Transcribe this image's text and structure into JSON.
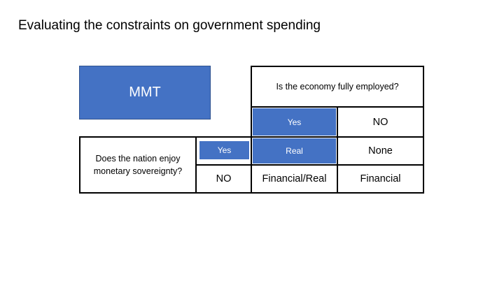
{
  "slide": {
    "title": "Evaluating the constraints on government spending"
  },
  "mmt_box": {
    "label": "MMT"
  },
  "matrix": {
    "column_question": "Is the economy fully employed?",
    "row_question": "Does the nation enjoy monetary sovereignty?",
    "column_headers": [
      "Yes",
      "NO"
    ],
    "row_headers": [
      "Yes",
      "NO"
    ],
    "cells": [
      [
        "Real",
        "None"
      ],
      [
        "Financial/Real",
        "Financial"
      ]
    ]
  },
  "colors": {
    "accent": "#4472c4",
    "border": "#000000"
  }
}
